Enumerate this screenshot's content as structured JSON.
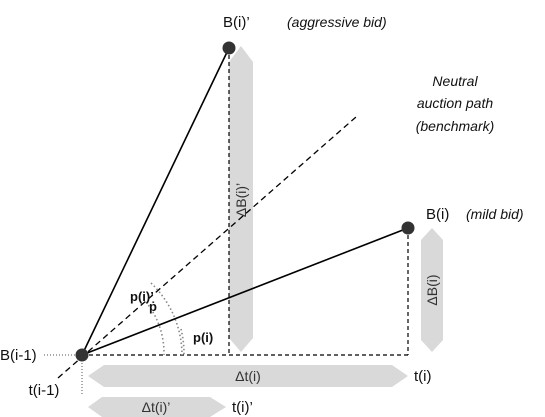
{
  "labels": {
    "point_aggressive": "B(i)’",
    "desc_aggressive": "(aggressive bid)",
    "point_mild": "B(i)",
    "desc_mild": "(mild bid)",
    "point_origin": "B(i-1)",
    "neutral_line1": "Neutral",
    "neutral_line2": "auction path",
    "neutral_line3": "(benchmark)",
    "angle_aggressive": "p(i)’",
    "angle_neutral": "ṗ",
    "angle_mild": "p(i)",
    "time_origin": "t(i-1)",
    "time_mild": "t(i)",
    "time_aggressive": "t(i)’"
  },
  "arrows": {
    "delta_b_aggressive": "ΔB(i)’",
    "delta_b_mild": "ΔB(i)",
    "delta_t_mild": "Δt(i)",
    "delta_t_aggressive": "Δt(i)’"
  },
  "colors": {
    "arrow_fill": "#d9d9d9",
    "line": "#000000",
    "dot": "#333333"
  }
}
